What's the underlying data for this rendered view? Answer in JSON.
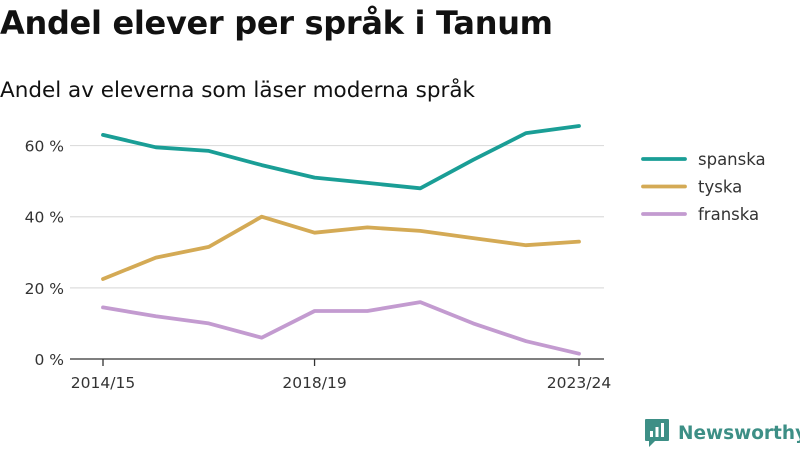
{
  "title": "Andel elever per språk i Tanum",
  "subtitle": "Andel av eleverna som läser moderna språk",
  "brand": {
    "name": "Newsworthy",
    "color": "#3d8f86"
  },
  "chart_data": {
    "type": "line",
    "x": [
      "2014/15",
      "2015/16",
      "2016/17",
      "2017/18",
      "2018/19",
      "2019/20",
      "2020/21",
      "2021/22",
      "2022/23",
      "2023/24"
    ],
    "x_tick_labels": [
      "2014/15",
      "2018/19",
      "2023/24"
    ],
    "y_ticks": [
      0,
      20,
      40,
      60
    ],
    "y_tick_labels": [
      "0 %",
      "20 %",
      "40 %",
      "60 %"
    ],
    "ylim": [
      0,
      70
    ],
    "grid": true,
    "legend_position": "top-right",
    "series": [
      {
        "name": "spanska",
        "color": "#1a9e96",
        "values": [
          63,
          59.5,
          58.5,
          54.5,
          51,
          49.5,
          48,
          56,
          63.5,
          65.5
        ]
      },
      {
        "name": "tyska",
        "color": "#d4aa55",
        "values": [
          22.5,
          28.5,
          31.5,
          40,
          35.5,
          37,
          36,
          34,
          32,
          33
        ]
      },
      {
        "name": "franska",
        "color": "#c39bd0",
        "values": [
          14.5,
          12,
          10,
          6,
          13.5,
          13.5,
          16,
          10,
          5,
          1.5
        ]
      }
    ]
  }
}
